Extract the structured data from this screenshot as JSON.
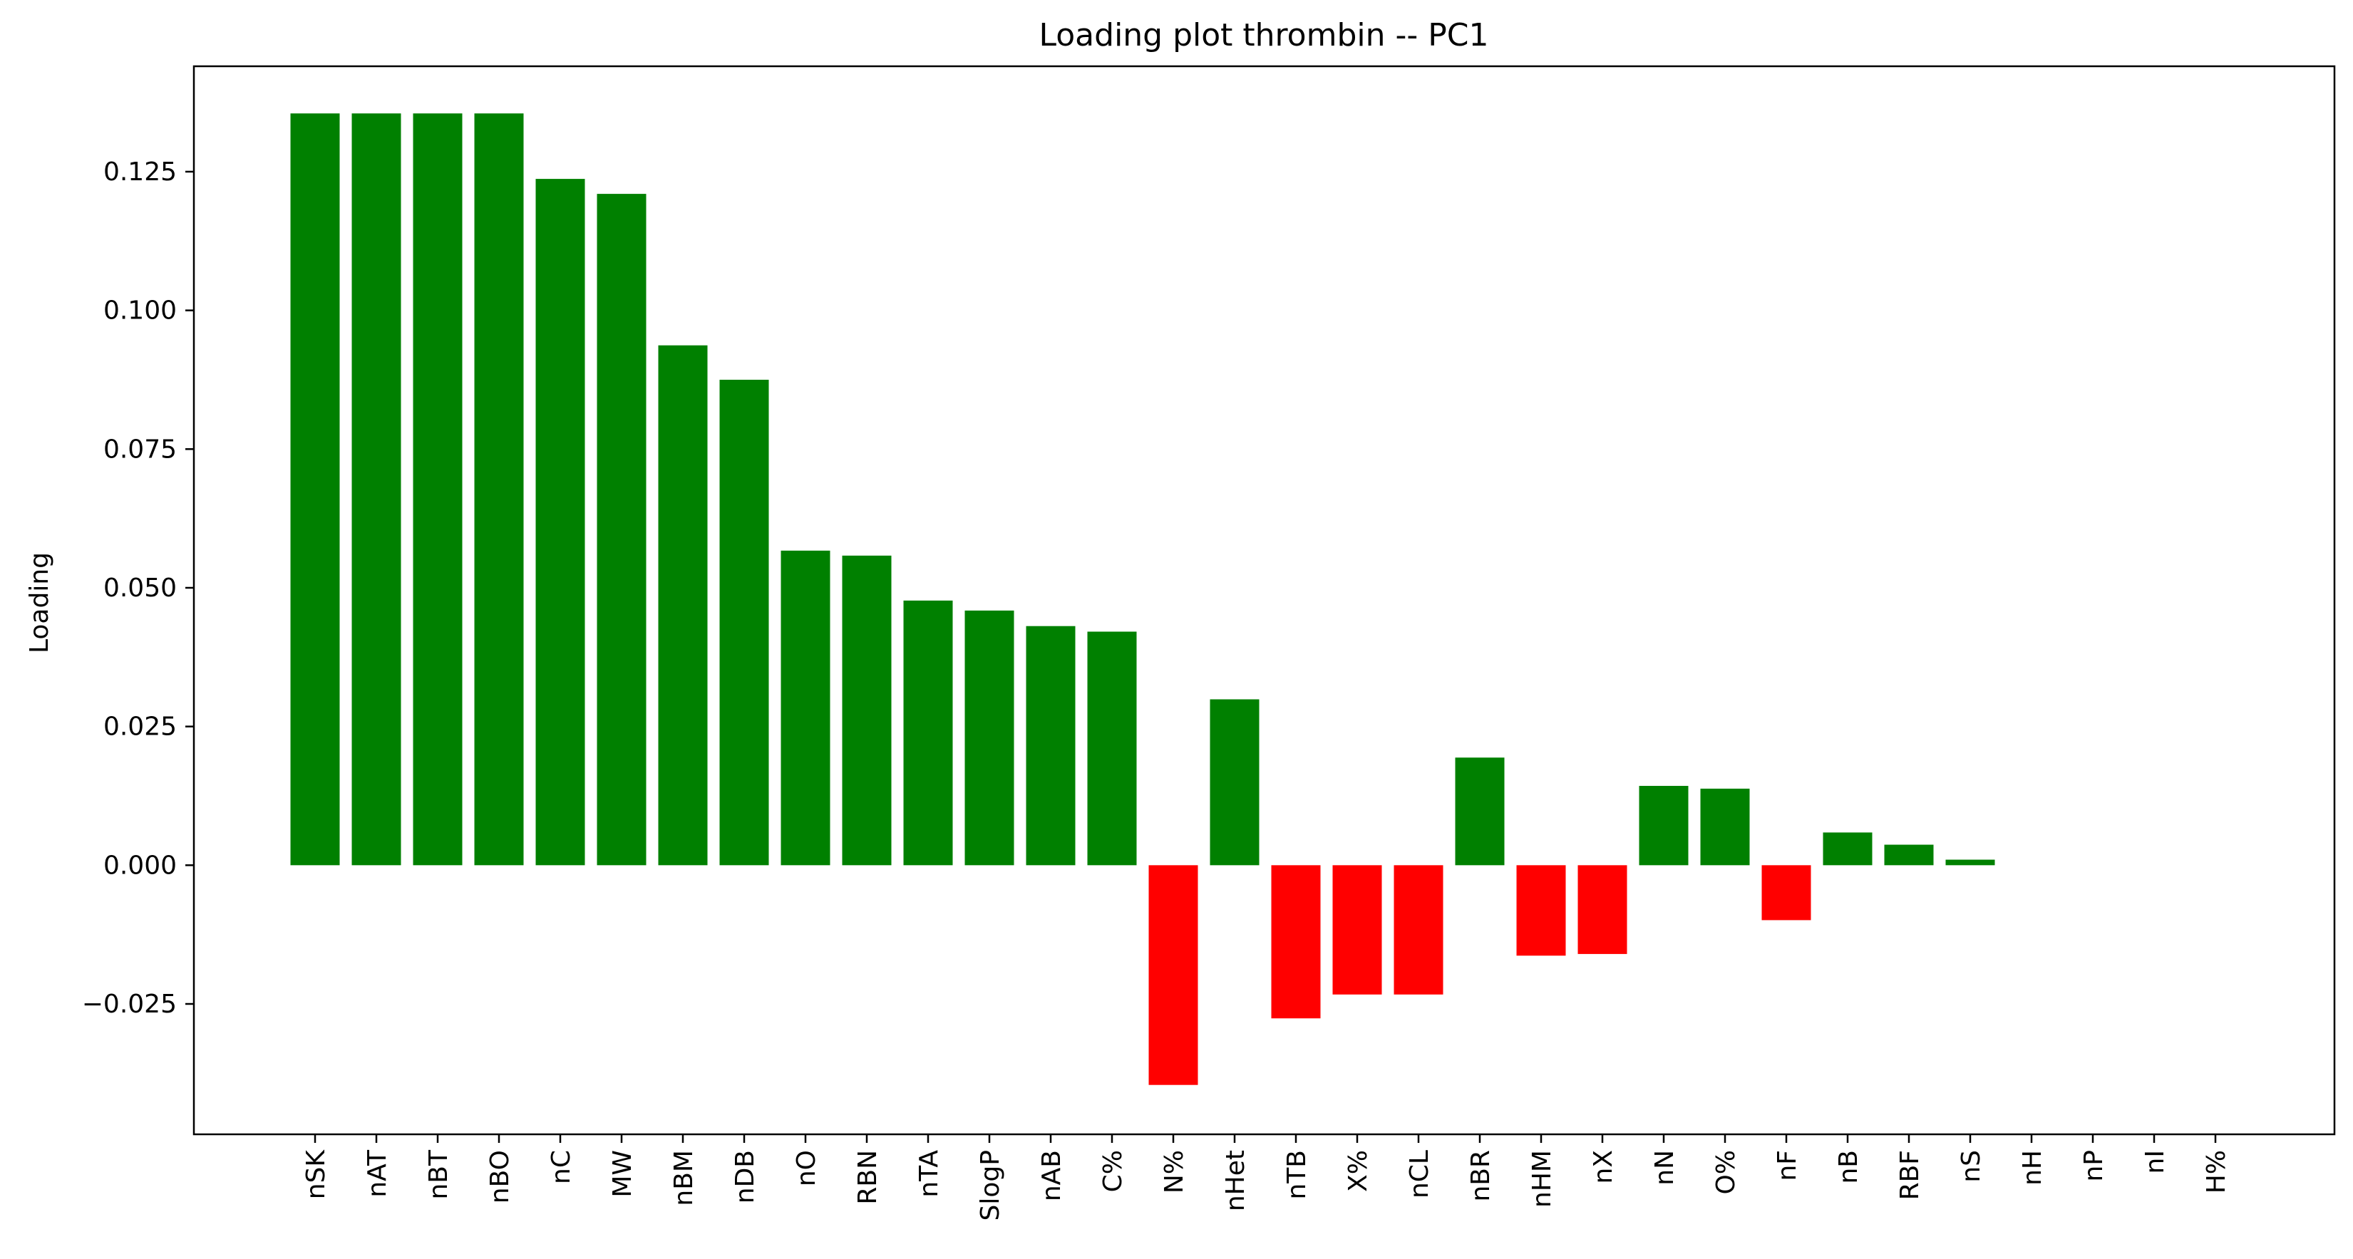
{
  "chart_data": {
    "type": "bar",
    "title": "Loading plot thrombin -- PC1",
    "xlabel": "",
    "ylabel": "Loading",
    "ylim": [
      -0.0485,
      0.144
    ],
    "yticks": [
      -0.025,
      0.0,
      0.025,
      0.05,
      0.075,
      0.1,
      0.125
    ],
    "ytick_labels": [
      "−0.025",
      "0.000",
      "0.025",
      "0.050",
      "0.075",
      "0.100",
      "0.125"
    ],
    "grid": false,
    "positive_color": "#008000",
    "negative_color": "#ff0000",
    "categories": [
      "nSK",
      "nAT",
      "nBT",
      "nBO",
      "nC",
      "MW",
      "nBM",
      "nDB",
      "nO",
      "RBN",
      "nTA",
      "SlogP",
      "nAB",
      "C%",
      "N%",
      "nHet",
      "nTB",
      "X%",
      "nCL",
      "nBR",
      "nHM",
      "nX",
      "nN",
      "O%",
      "nF",
      "nB",
      "RBF",
      "nS",
      "nH",
      "nP",
      "nI",
      "H%"
    ],
    "values": [
      0.1355,
      0.1355,
      0.1355,
      0.1355,
      0.1237,
      0.121,
      0.0937,
      0.0875,
      0.0567,
      0.0558,
      0.0477,
      0.0459,
      0.0431,
      0.0421,
      -0.0396,
      0.0299,
      -0.0276,
      -0.0233,
      -0.0233,
      0.0194,
      -0.0163,
      -0.016,
      0.0143,
      0.0138,
      -0.0099,
      0.0059,
      0.0037,
      0.001,
      0.0,
      0.0,
      0.0,
      0.0
    ]
  }
}
